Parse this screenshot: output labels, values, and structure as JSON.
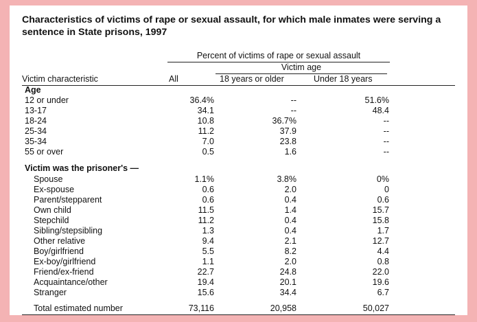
{
  "title": "Characteristics of victims of rape or sexual assault, for which male inmates were serving a sentence in State prisons, 1997",
  "headers": {
    "spanner": "Percent of victims of rape or sexual assault",
    "victim_age": "Victim age",
    "stub": "Victim characteristic",
    "all": "All",
    "adult": "18 years or older",
    "minor": "Under 18 years"
  },
  "age_section": {
    "label": "Age",
    "rows": [
      {
        "label": "12 or under",
        "all": "36.4%",
        "adult": "--",
        "minor": "51.6%"
      },
      {
        "label": "13-17",
        "all": "34.1",
        "adult": "--",
        "minor": "48.4"
      },
      {
        "label": "18-24",
        "all": "10.8",
        "adult": "36.7%",
        "minor": "--"
      },
      {
        "label": "25-34",
        "all": "11.2",
        "adult": "37.9",
        "minor": "--"
      },
      {
        "label": "35-34",
        "all": "7.0",
        "adult": "23.8",
        "minor": "--"
      },
      {
        "label": "55 or over",
        "all": "0.5",
        "adult": "1.6",
        "minor": "--"
      }
    ]
  },
  "relation_section": {
    "label": "Victim was the prisoner's —",
    "rows": [
      {
        "label": "Spouse",
        "all": "1.1%",
        "adult": "3.8%",
        "minor": "0%"
      },
      {
        "label": "Ex-spouse",
        "all": "0.6",
        "adult": "2.0",
        "minor": "0"
      },
      {
        "label": "Parent/stepparent",
        "all": "0.6",
        "adult": "0.4",
        "minor": "0.6"
      },
      {
        "label": "Own child",
        "all": "11.5",
        "adult": "1.4",
        "minor": "15.7"
      },
      {
        "label": "Stepchild",
        "all": "11.2",
        "adult": "0.4",
        "minor": "15.8"
      },
      {
        "label": "Sibling/stepsibling",
        "all": "1.3",
        "adult": "0.4",
        "minor": "1.7"
      },
      {
        "label": "Other relative",
        "all": "9.4",
        "adult": "2.1",
        "minor": "12.7"
      },
      {
        "label": "Boy/girlfriend",
        "all": "5.5",
        "adult": "8.2",
        "minor": "4.4"
      },
      {
        "label": "Ex-boy/girlfriend",
        "all": "1.1",
        "adult": "2.0",
        "minor": "0.8"
      },
      {
        "label": "Friend/ex-friend",
        "all": "22.7",
        "adult": "24.8",
        "minor": "22.0"
      },
      {
        "label": "Acquaintance/other",
        "all": "19.4",
        "adult": "20.1",
        "minor": "19.6"
      },
      {
        "label": "Stranger",
        "all": "15.6",
        "adult": "34.4",
        "minor": "6.7"
      }
    ]
  },
  "total": {
    "label": "Total estimated number",
    "all": "73,116",
    "adult": "20,958",
    "minor": "50,027"
  }
}
